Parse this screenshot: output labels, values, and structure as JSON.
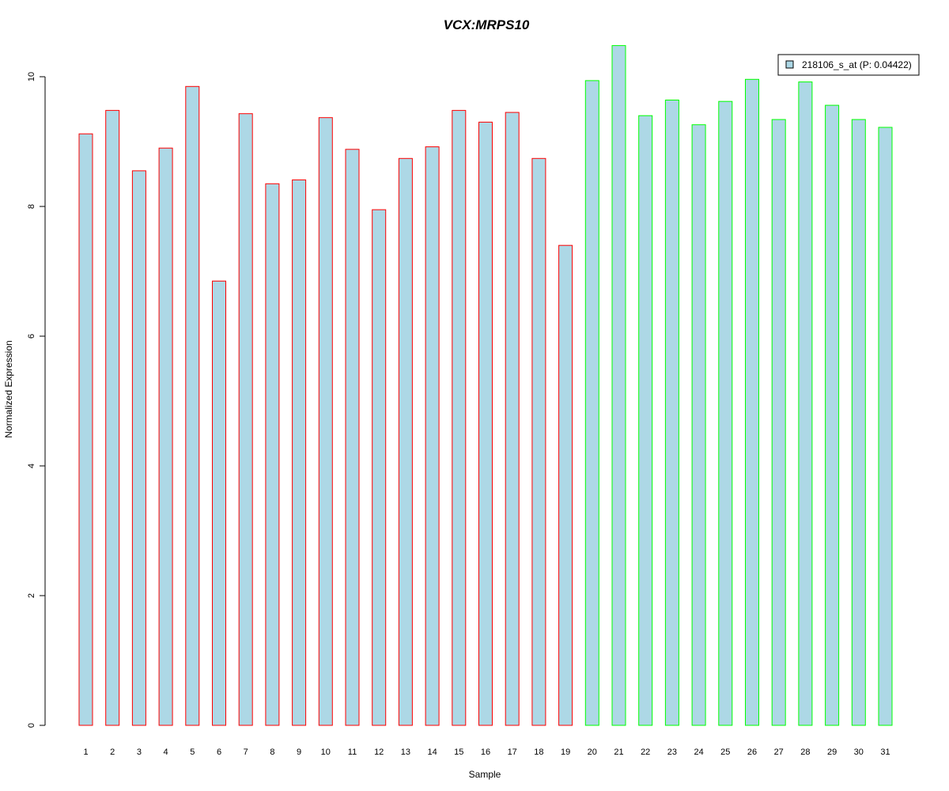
{
  "chart_data": {
    "type": "bar",
    "title": "VCX:MRPS10",
    "xlabel": "Sample",
    "ylabel": "Normalized Expression",
    "ylim": [
      0,
      10.5
    ],
    "yticks": [
      "0",
      "2",
      "4",
      "6",
      "8",
      "10"
    ],
    "categories": [
      "1",
      "2",
      "3",
      "4",
      "5",
      "6",
      "7",
      "8",
      "9",
      "10",
      "11",
      "12",
      "13",
      "14",
      "15",
      "16",
      "17",
      "18",
      "19",
      "20",
      "21",
      "22",
      "23",
      "24",
      "25",
      "26",
      "27",
      "28",
      "29",
      "30",
      "31"
    ],
    "values": [
      9.12,
      9.48,
      8.55,
      8.9,
      9.85,
      6.85,
      9.43,
      8.35,
      8.41,
      9.37,
      8.88,
      7.95,
      8.74,
      8.92,
      9.48,
      9.3,
      9.45,
      8.74,
      7.4,
      9.94,
      10.48,
      9.4,
      9.64,
      9.26,
      9.62,
      9.96,
      9.34,
      9.92,
      9.56,
      9.34,
      9.22
    ],
    "groups": [
      "red",
      "red",
      "red",
      "red",
      "red",
      "red",
      "red",
      "red",
      "red",
      "red",
      "red",
      "red",
      "red",
      "red",
      "red",
      "red",
      "red",
      "red",
      "red",
      "green",
      "green",
      "green",
      "green",
      "green",
      "green",
      "green",
      "green",
      "green",
      "green",
      "green",
      "green"
    ],
    "legend": {
      "label": "218106_s_at (P: 0.04422)",
      "position": "top-right"
    },
    "grid": false
  },
  "colors": {
    "bar_fill": "#add8e6",
    "group_border": {
      "red": "#ff0000",
      "green": "#00ff00"
    },
    "title": "#0000cc",
    "axis": "#000000"
  }
}
